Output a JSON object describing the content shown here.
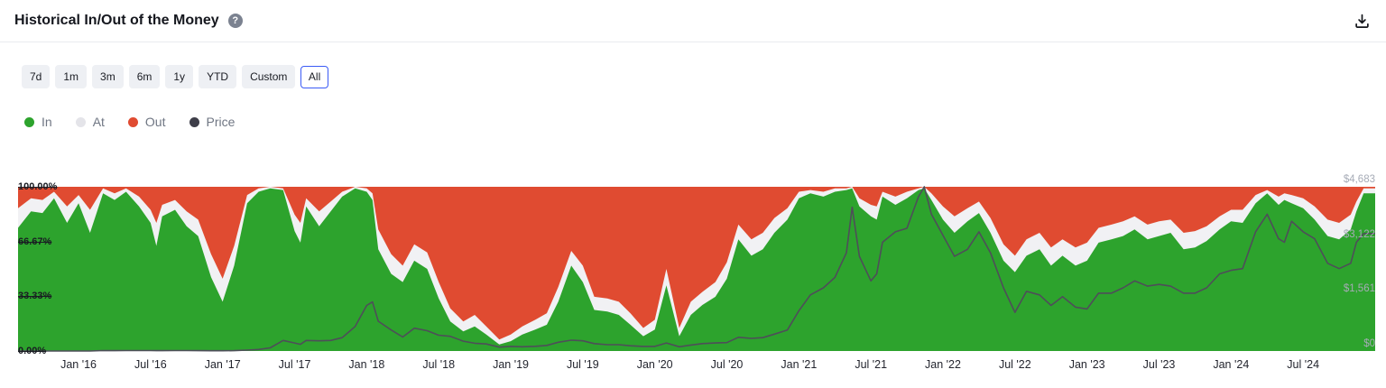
{
  "header": {
    "title": "Historical In/Out of the Money"
  },
  "icons": {
    "help": "?",
    "download": "download-icon"
  },
  "time_range": {
    "options": [
      "7d",
      "1m",
      "3m",
      "6m",
      "1y",
      "YTD",
      "Custom",
      "All"
    ],
    "selected": "All"
  },
  "legend": [
    {
      "label": "In",
      "color": "#2DA32D"
    },
    {
      "label": "At",
      "color": "#E4E4E9"
    },
    {
      "label": "Out",
      "color": "#E04B31"
    },
    {
      "label": "Price",
      "color": "#3E3E49"
    }
  ],
  "chart_data": {
    "type": "area",
    "title": "Historical In/Out of the Money",
    "stacked": true,
    "x_unit": "decimal_year",
    "x_domain": [
      2015.58,
      2025.0
    ],
    "x": [
      2015.58,
      2015.67,
      2015.75,
      2015.83,
      2015.92,
      2016.0,
      2016.08,
      2016.17,
      2016.25,
      2016.33,
      2016.42,
      2016.5,
      2016.54,
      2016.58,
      2016.67,
      2016.75,
      2016.83,
      2016.92,
      2017.0,
      2017.08,
      2017.17,
      2017.25,
      2017.33,
      2017.42,
      2017.5,
      2017.54,
      2017.58,
      2017.67,
      2017.75,
      2017.83,
      2017.92,
      2018.0,
      2018.04,
      2018.08,
      2018.17,
      2018.25,
      2018.33,
      2018.42,
      2018.5,
      2018.58,
      2018.67,
      2018.75,
      2018.83,
      2018.92,
      2019.0,
      2019.08,
      2019.17,
      2019.25,
      2019.33,
      2019.42,
      2019.5,
      2019.58,
      2019.67,
      2019.75,
      2019.83,
      2019.92,
      2020.0,
      2020.08,
      2020.17,
      2020.25,
      2020.33,
      2020.42,
      2020.5,
      2020.58,
      2020.67,
      2020.75,
      2020.83,
      2020.92,
      2021.0,
      2021.08,
      2021.17,
      2021.25,
      2021.33,
      2021.37,
      2021.42,
      2021.5,
      2021.54,
      2021.58,
      2021.67,
      2021.75,
      2021.83,
      2021.87,
      2021.92,
      2022.0,
      2022.08,
      2022.17,
      2022.25,
      2022.33,
      2022.42,
      2022.5,
      2022.58,
      2022.67,
      2022.75,
      2022.83,
      2022.92,
      2023.0,
      2023.08,
      2023.17,
      2023.25,
      2023.33,
      2023.42,
      2023.5,
      2023.58,
      2023.67,
      2023.75,
      2023.83,
      2023.92,
      2024.0,
      2024.08,
      2024.17,
      2024.25,
      2024.33,
      2024.37,
      2024.42,
      2024.5,
      2024.58,
      2024.67,
      2024.75,
      2024.83,
      2024.87,
      2024.92
    ],
    "series": [
      {
        "name": "In",
        "unit": "percent",
        "color": "#2DA32D",
        "values": [
          75,
          85,
          84,
          93,
          78,
          90,
          72,
          96,
          92,
          97,
          88,
          78,
          64,
          82,
          86,
          76,
          70,
          45,
          30,
          52,
          90,
          97,
          99,
          98,
          73,
          66,
          88,
          76,
          85,
          94,
          99,
          97,
          92,
          62,
          47,
          42,
          55,
          50,
          32,
          18,
          12,
          15,
          10,
          4,
          6,
          10,
          13,
          16,
          30,
          52,
          42,
          25,
          24,
          22,
          16,
          9,
          13,
          40,
          9,
          22,
          28,
          33,
          44,
          68,
          58,
          62,
          72,
          80,
          93,
          96,
          94,
          97,
          98,
          99,
          88,
          82,
          80,
          94,
          89,
          93,
          98,
          99,
          92,
          80,
          72,
          79,
          84,
          72,
          55,
          48,
          58,
          62,
          52,
          58,
          52,
          55,
          66,
          68,
          70,
          74,
          68,
          70,
          72,
          62,
          63,
          67,
          74,
          79,
          78,
          90,
          96,
          89,
          92,
          90,
          87,
          80,
          70,
          68,
          74,
          85,
          96
        ]
      },
      {
        "name": "At",
        "unit": "percent",
        "color": "#F1F1F4",
        "values": [
          12,
          8,
          8,
          4,
          10,
          5,
          14,
          3,
          4,
          2,
          6,
          8,
          14,
          7,
          6,
          9,
          10,
          14,
          14,
          12,
          5,
          2,
          1,
          1,
          10,
          12,
          5,
          9,
          6,
          3,
          1,
          2,
          4,
          12,
          12,
          10,
          10,
          10,
          10,
          8,
          6,
          7,
          5,
          3,
          4,
          5,
          6,
          7,
          9,
          9,
          10,
          8,
          8,
          8,
          7,
          5,
          6,
          10,
          5,
          8,
          8,
          9,
          10,
          9,
          10,
          10,
          9,
          7,
          4,
          2,
          3,
          2,
          1,
          1,
          5,
          7,
          8,
          3,
          5,
          4,
          1,
          1,
          4,
          8,
          10,
          8,
          7,
          9,
          10,
          10,
          10,
          10,
          11,
          10,
          11,
          11,
          9,
          9,
          9,
          8,
          9,
          9,
          8,
          10,
          10,
          9,
          8,
          7,
          8,
          5,
          2,
          5,
          4,
          5,
          6,
          8,
          10,
          10,
          9,
          6,
          3
        ]
      },
      {
        "name": "Out",
        "unit": "percent",
        "color": "#E04B31",
        "derived": "100 - In - At"
      },
      {
        "name": "Price",
        "unit": "USD",
        "color": "#4E4E59",
        "values": [
          1.3,
          1.2,
          0.9,
          1.0,
          0.9,
          1.0,
          1.0,
          12,
          11,
          12,
          14,
          12,
          11,
          11,
          12,
          12,
          10,
          8,
          9,
          11,
          25,
          45,
          90,
          300,
          230,
          190,
          300,
          290,
          300,
          380,
          700,
          1300,
          1400,
          850,
          600,
          400,
          650,
          580,
          450,
          420,
          280,
          220,
          200,
          110,
          130,
          120,
          135,
          160,
          250,
          310,
          290,
          210,
          180,
          180,
          150,
          130,
          130,
          230,
          120,
          170,
          210,
          230,
          240,
          390,
          360,
          380,
          480,
          600,
          1150,
          1600,
          1800,
          2100,
          2800,
          4100,
          2700,
          2000,
          2200,
          3100,
          3400,
          3500,
          4400,
          4683,
          3900,
          3300,
          2700,
          2900,
          3400,
          2800,
          1800,
          1100,
          1700,
          1600,
          1300,
          1550,
          1250,
          1200,
          1650,
          1650,
          1800,
          2000,
          1850,
          1900,
          1850,
          1650,
          1650,
          1800,
          2200,
          2300,
          2350,
          3400,
          3900,
          3200,
          3100,
          3700,
          3400,
          3200,
          2500,
          2350,
          2500,
          3100,
          3350
        ]
      }
    ],
    "y_left": {
      "range": [
        0,
        100
      ],
      "ticks": [
        {
          "value": 100,
          "label": "100.00%"
        },
        {
          "value": 66.67,
          "label": "66.67%"
        },
        {
          "value": 33.33,
          "label": "33.33%"
        },
        {
          "value": 0,
          "label": "0.00%"
        }
      ]
    },
    "y_right": {
      "range": [
        0,
        4683
      ],
      "ticks": [
        {
          "value": 4683,
          "label": "$4,683"
        },
        {
          "value": 3122,
          "label": "$3,122"
        },
        {
          "value": 1561,
          "label": "$1,561"
        },
        {
          "value": 0,
          "label": "$0"
        }
      ]
    },
    "x_ticks": [
      {
        "value": 2016.0,
        "label": "Jan '16"
      },
      {
        "value": 2016.5,
        "label": "Jul '16"
      },
      {
        "value": 2017.0,
        "label": "Jan '17"
      },
      {
        "value": 2017.5,
        "label": "Jul '17"
      },
      {
        "value": 2018.0,
        "label": "Jan '18"
      },
      {
        "value": 2018.5,
        "label": "Jul '18"
      },
      {
        "value": 2019.0,
        "label": "Jan '19"
      },
      {
        "value": 2019.5,
        "label": "Jul '19"
      },
      {
        "value": 2020.0,
        "label": "Jan '20"
      },
      {
        "value": 2020.5,
        "label": "Jul '20"
      },
      {
        "value": 2021.0,
        "label": "Jan '21"
      },
      {
        "value": 2021.5,
        "label": "Jul '21"
      },
      {
        "value": 2022.0,
        "label": "Jan '22"
      },
      {
        "value": 2022.5,
        "label": "Jul '22"
      },
      {
        "value": 2023.0,
        "label": "Jan '23"
      },
      {
        "value": 2023.5,
        "label": "Jul '23"
      },
      {
        "value": 2024.0,
        "label": "Jan '24"
      },
      {
        "value": 2024.5,
        "label": "Jul '24"
      }
    ],
    "legend_position": "top-left",
    "grid": false
  }
}
